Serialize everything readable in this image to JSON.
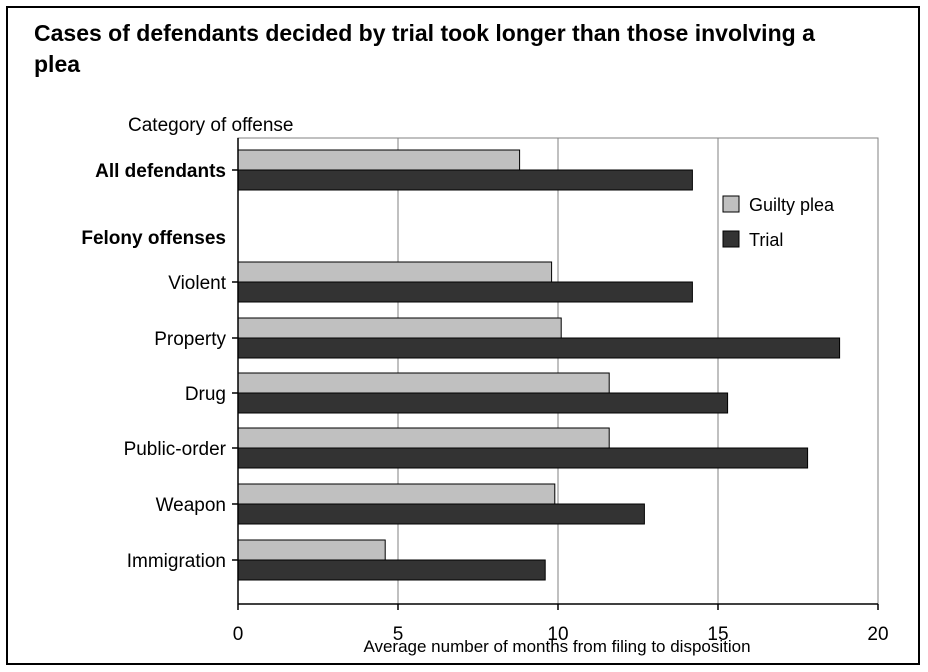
{
  "chart_data": {
    "type": "bar",
    "orientation": "horizontal",
    "title": "Cases of defendants decided by trial took longer than those involving a plea",
    "category_header": "Category of offense",
    "xlabel": "Average number of months from filing to disposition",
    "xlim": [
      0,
      20
    ],
    "xticks": [
      0,
      5,
      10,
      15,
      20
    ],
    "grid": true,
    "legend_position": "upper-right",
    "rows": [
      {
        "label": "All defendants",
        "bold": true,
        "header": false
      },
      {
        "label": "Felony offenses",
        "bold": true,
        "header": true
      },
      {
        "label": "Violent",
        "bold": false,
        "header": false
      },
      {
        "label": "Property",
        "bold": false,
        "header": false
      },
      {
        "label": "Drug",
        "bold": false,
        "header": false
      },
      {
        "label": "Public-order",
        "bold": false,
        "header": false
      },
      {
        "label": "Weapon",
        "bold": false,
        "header": false
      },
      {
        "label": "Immigration",
        "bold": false,
        "header": false
      }
    ],
    "categories": [
      "All defendants",
      "Violent",
      "Property",
      "Drug",
      "Public-order",
      "Weapon",
      "Immigration"
    ],
    "series": [
      {
        "name": "Guilty plea",
        "color": "#c0c0c0",
        "values": [
          8.8,
          9.8,
          10.1,
          11.6,
          11.6,
          9.9,
          4.6
        ]
      },
      {
        "name": "Trial",
        "color": "#333333",
        "values": [
          14.2,
          14.2,
          18.8,
          15.3,
          17.8,
          12.7,
          9.6
        ]
      }
    ]
  }
}
